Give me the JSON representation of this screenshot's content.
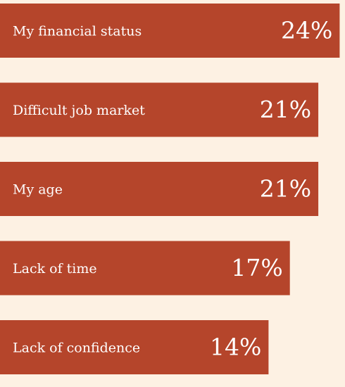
{
  "chart_data": {
    "type": "bar",
    "orientation": "horizontal",
    "categories": [
      "My financial status",
      "Difficult job market",
      "My age",
      "Lack of time",
      "Lack of confidence"
    ],
    "values": [
      24,
      21,
      21,
      17,
      14
    ],
    "value_labels": [
      "24%",
      "21%",
      "21%",
      "17%",
      "14%"
    ],
    "color": "#b5452b"
  }
}
